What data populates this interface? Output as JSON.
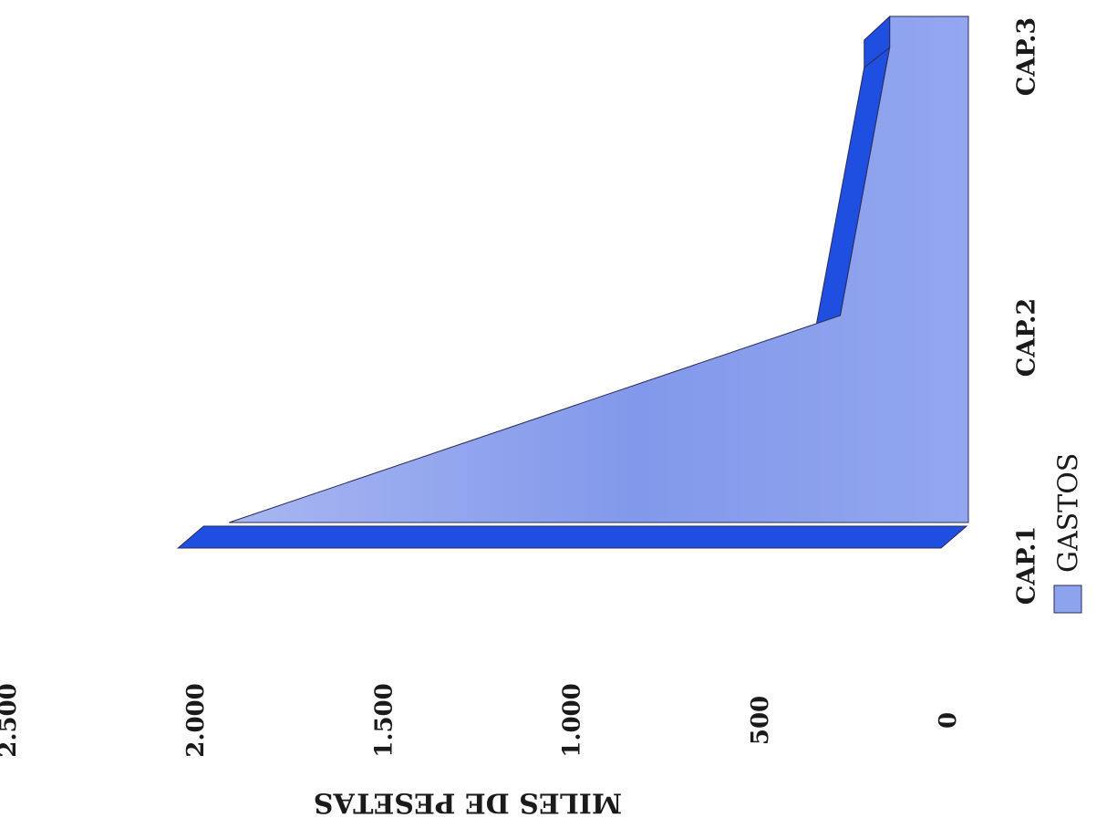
{
  "chart_data": {
    "type": "area",
    "orientation": "rotated-90-cw",
    "title": "",
    "ylabel": "MILES DE PESETAS",
    "xlabel": "",
    "ylim": [
      0,
      2500
    ],
    "yticks": [
      0,
      500,
      1000,
      1500,
      2000,
      2500
    ],
    "ytick_labels": [
      "0",
      "500",
      "1.000",
      "1.500",
      "2.000",
      "2.500"
    ],
    "categories": [
      "CAP.1",
      "CAP.2",
      "CAP.3"
    ],
    "series": [
      {
        "name": "GASTOS",
        "values": [
          1980,
          360,
          180
        ]
      }
    ],
    "legend": {
      "position": "bottom",
      "entries": [
        "GASTOS"
      ]
    },
    "grid": false,
    "three_d": true
  },
  "colors": {
    "front": "#8ea3ee",
    "depth": "#1f4fe0",
    "outline": "#2a2a5a",
    "text": "#1a1a1a"
  }
}
